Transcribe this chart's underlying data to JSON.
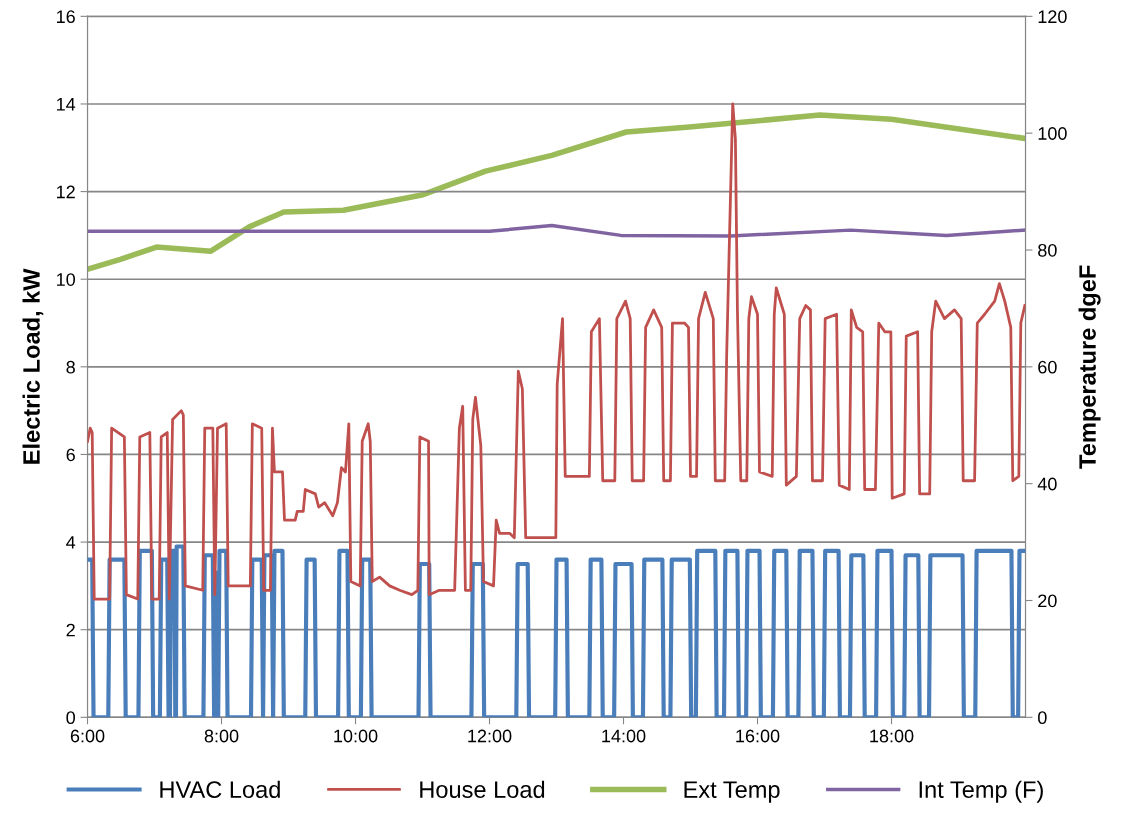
{
  "chart_data": {
    "type": "line",
    "ylabel": "Electric Load, kW",
    "y2label": "Temperature dgeF",
    "xlim": [
      6,
      20
    ],
    "xticks": [
      {
        "value": 6,
        "label": "6:00"
      },
      {
        "value": 8,
        "label": "8:00"
      },
      {
        "value": 10,
        "label": "10:00"
      },
      {
        "value": 12,
        "label": "12:00"
      },
      {
        "value": 14,
        "label": "14:00"
      },
      {
        "value": 16,
        "label": "16:00"
      },
      {
        "value": 18,
        "label": "18:00"
      }
    ],
    "ylim": [
      0,
      16
    ],
    "yticks": [
      0,
      2,
      4,
      6,
      8,
      10,
      12,
      14,
      16
    ],
    "y2lim": [
      0,
      120
    ],
    "y2ticks": [
      0,
      20,
      40,
      60,
      80,
      100,
      120
    ],
    "grid": "y",
    "legend": "bottom",
    "marker": "none",
    "line_style": "solid",
    "series": [
      {
        "name": "HVAC Load",
        "color": "#4a7ebb",
        "x": [
          6.0,
          6.07,
          6.09,
          6.31,
          6.33,
          6.55,
          6.57,
          6.76,
          6.78,
          6.96,
          6.98,
          7.08,
          7.1,
          7.19,
          7.21,
          7.23,
          7.25,
          7.3,
          7.31,
          7.32,
          7.33,
          7.43,
          7.45,
          7.73,
          7.75,
          7.87,
          7.89,
          7.89,
          7.91,
          7.94,
          7.95,
          7.95,
          7.97,
          8.07,
          8.09,
          8.44,
          8.46,
          8.6,
          8.62,
          8.62,
          8.64,
          8.75,
          8.77,
          8.77,
          8.79,
          8.91,
          8.93,
          9.25,
          9.27,
          9.39,
          9.41,
          9.74,
          9.76,
          9.88,
          9.9,
          10.08,
          10.1,
          10.22,
          10.24,
          10.94,
          10.96,
          11.1,
          11.12,
          11.73,
          11.75,
          11.9,
          11.92,
          12.4,
          12.42,
          12.57,
          12.59,
          12.98,
          13.0,
          13.15,
          13.17,
          13.49,
          13.51,
          13.67,
          13.69,
          13.86,
          13.88,
          14.12,
          14.14,
          14.29,
          14.31,
          14.58,
          14.6,
          14.7,
          14.72,
          14.99,
          15.01,
          15.08,
          15.1,
          15.37,
          15.39,
          15.5,
          15.52,
          15.7,
          15.72,
          15.83,
          15.85,
          16.03,
          16.05,
          16.23,
          16.25,
          16.43,
          16.45,
          16.61,
          16.63,
          16.82,
          16.84,
          16.99,
          17.01,
          17.21,
          17.23,
          17.38,
          17.4,
          17.58,
          17.6,
          17.77,
          17.79,
          18.0,
          18.02,
          18.19,
          18.21,
          18.4,
          18.42,
          18.56,
          18.58,
          19.06,
          19.08,
          19.25,
          19.27,
          19.79,
          19.81,
          19.89,
          19.91,
          19.99
        ],
        "values": [
          3.6,
          3.6,
          0,
          0,
          3.6,
          3.6,
          0,
          0,
          3.8,
          3.8,
          0,
          0,
          3.6,
          3.6,
          0,
          0,
          3.8,
          3.8,
          0,
          0,
          3.9,
          3.9,
          0,
          0,
          3.7,
          3.7,
          0,
          0,
          3.3,
          3.3,
          0,
          0,
          3.8,
          3.8,
          0,
          0,
          3.6,
          3.6,
          0,
          0,
          3.7,
          3.7,
          0,
          0,
          3.8,
          3.8,
          0,
          0,
          3.6,
          3.6,
          0,
          0,
          3.8,
          3.8,
          0,
          0,
          3.6,
          3.6,
          0,
          0,
          3.5,
          3.5,
          0,
          0,
          3.5,
          3.5,
          0,
          0,
          3.5,
          3.5,
          0,
          0,
          3.6,
          3.6,
          0,
          0,
          3.6,
          3.6,
          0,
          0,
          3.5,
          3.5,
          0,
          0,
          3.6,
          3.6,
          0,
          0,
          3.6,
          3.6,
          0,
          0,
          3.8,
          3.8,
          0,
          0,
          3.8,
          3.8,
          0,
          0,
          3.8,
          3.8,
          0,
          0,
          3.8,
          3.8,
          0,
          0,
          3.8,
          3.8,
          0,
          0,
          3.8,
          3.8,
          0,
          0,
          3.7,
          3.7,
          0,
          0,
          3.8,
          3.8,
          0,
          0,
          3.7,
          3.7,
          0,
          0,
          3.7,
          3.7,
          0,
          0,
          3.8,
          3.8,
          0,
          0,
          3.8,
          3.8
        ]
      },
      {
        "name": "House Load",
        "color": "#c0504d",
        "x": [
          6.0,
          6.04,
          6.07,
          6.1,
          6.33,
          6.36,
          6.55,
          6.58,
          6.75,
          6.78,
          6.93,
          6.96,
          7.07,
          7.1,
          7.19,
          7.22,
          7.27,
          7.4,
          7.43,
          7.46,
          7.72,
          7.75,
          7.87,
          7.9,
          7.94,
          8.07,
          8.1,
          8.43,
          8.46,
          8.6,
          8.63,
          8.73,
          8.76,
          8.79,
          8.91,
          8.94,
          9.1,
          9.13,
          9.22,
          9.25,
          9.4,
          9.45,
          9.54,
          9.66,
          9.73,
          9.79,
          9.85,
          9.9,
          9.93,
          10.07,
          10.1,
          10.19,
          10.22,
          10.25,
          10.36,
          10.51,
          10.66,
          10.84,
          10.93,
          10.96,
          11.09,
          11.1,
          11.25,
          11.48,
          11.55,
          11.6,
          11.64,
          11.72,
          11.75,
          11.79,
          11.87,
          11.91,
          12.06,
          12.1,
          12.15,
          12.3,
          12.37,
          12.43,
          12.49,
          12.54,
          12.75,
          12.99,
          13.01,
          13.09,
          13.13,
          13.49,
          13.52,
          13.64,
          13.69,
          13.87,
          13.9,
          14.03,
          14.1,
          14.13,
          14.3,
          14.33,
          14.45,
          14.57,
          14.6,
          14.7,
          14.73,
          14.91,
          14.97,
          15.0,
          15.09,
          15.12,
          15.22,
          15.34,
          15.37,
          15.51,
          15.54,
          15.63,
          15.67,
          15.7,
          15.75,
          15.84,
          15.87,
          15.91,
          16.0,
          16.03,
          16.22,
          16.25,
          16.28,
          16.4,
          16.43,
          16.58,
          16.63,
          16.72,
          16.79,
          16.82,
          16.97,
          17.01,
          17.18,
          17.22,
          17.37,
          17.4,
          17.48,
          17.57,
          17.6,
          17.76,
          17.81,
          17.9,
          17.99,
          18.01,
          18.19,
          18.22,
          18.39,
          18.42,
          18.57,
          18.6,
          18.66,
          18.79,
          18.94,
          19.04,
          19.07,
          19.24,
          19.28,
          19.39,
          19.54,
          19.61,
          19.69,
          19.78,
          19.81,
          19.9,
          19.93,
          19.99
        ],
        "values": [
          6.3,
          6.6,
          6.5,
          2.7,
          2.7,
          6.6,
          6.4,
          2.8,
          2.7,
          6.4,
          6.5,
          2.7,
          2.7,
          6.4,
          6.5,
          2.7,
          6.8,
          7.0,
          6.9,
          3.0,
          2.9,
          6.6,
          6.6,
          2.8,
          6.6,
          6.7,
          3.0,
          3.0,
          6.7,
          6.6,
          2.9,
          2.9,
          6.6,
          5.6,
          5.6,
          4.5,
          4.5,
          4.7,
          4.7,
          5.2,
          5.1,
          4.8,
          4.9,
          4.6,
          4.9,
          5.7,
          5.6,
          6.7,
          3.1,
          3.0,
          6.3,
          6.7,
          6.3,
          3.1,
          3.2,
          3.0,
          2.9,
          2.8,
          2.9,
          6.4,
          6.3,
          2.8,
          2.9,
          2.9,
          6.6,
          7.1,
          2.9,
          2.9,
          6.8,
          7.3,
          6.2,
          3.1,
          3.0,
          4.5,
          4.2,
          4.2,
          4.1,
          7.9,
          7.5,
          4.1,
          4.1,
          4.1,
          7.6,
          9.1,
          5.5,
          5.5,
          8.8,
          9.1,
          5.4,
          5.4,
          9.1,
          9.5,
          9.1,
          5.4,
          5.4,
          8.9,
          9.3,
          8.9,
          5.4,
          5.4,
          9.0,
          9.0,
          8.9,
          5.5,
          5.5,
          9.1,
          9.7,
          9.1,
          5.4,
          5.4,
          8.3,
          14.0,
          13.2,
          9.3,
          5.4,
          5.4,
          9.1,
          9.6,
          9.2,
          5.6,
          5.5,
          9.2,
          9.8,
          9.2,
          5.3,
          5.5,
          9.1,
          9.4,
          9.3,
          5.4,
          5.4,
          9.1,
          9.2,
          5.3,
          5.2,
          9.3,
          8.9,
          8.8,
          5.2,
          5.2,
          9.0,
          8.8,
          8.8,
          5.0,
          5.1,
          8.7,
          8.8,
          5.1,
          5.1,
          8.8,
          9.5,
          9.1,
          9.3,
          9.1,
          5.4,
          5.4,
          9.0,
          9.2,
          9.5,
          9.9,
          9.5,
          8.9,
          5.4,
          5.5,
          9.0,
          9.4
        ]
      },
      {
        "name": "Ext Temp",
        "color": "#9bbb59",
        "axis": "y2",
        "x": [
          6.0,
          6.49,
          7.03,
          7.84,
          8.42,
          8.93,
          9.82,
          10.99,
          11.94,
          12.93,
          14.04,
          14.94,
          16.93,
          18.0,
          19.99
        ],
        "values": [
          76.7,
          78.4,
          80.5,
          79.8,
          84,
          86.5,
          86.8,
          89.4,
          93.5,
          96.2,
          100.2,
          101,
          103.1,
          102.4,
          99.1
        ]
      },
      {
        "name": "Int Temp (F)",
        "color": "#8064a2",
        "axis": "y2",
        "x": [
          6.0,
          12.0,
          12.93,
          13.96,
          15.6,
          17.39,
          18.82,
          19.99
        ],
        "values": [
          83.2,
          83.2,
          84.2,
          82.5,
          82.4,
          83.4,
          82.5,
          83.4
        ]
      }
    ]
  }
}
